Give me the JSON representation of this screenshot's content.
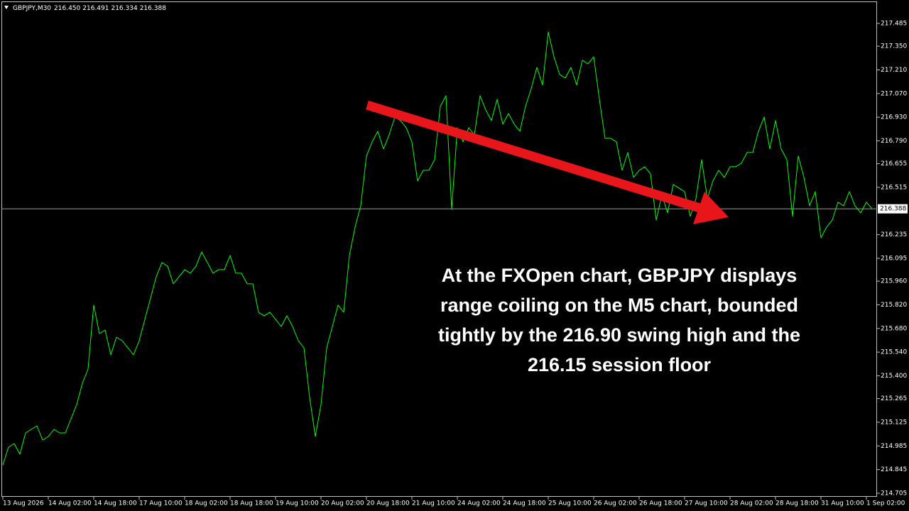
{
  "chart_data": {
    "type": "line",
    "title": "GBPJPY,M30",
    "ohlc_labels": [
      "216.450",
      "216.491",
      "216.334",
      "216.388"
    ],
    "annotation": [
      "At the FXOpen chart, GBPJPY displays",
      "range coiling on the M5 chart, bounded",
      "tightly by the 216.90 swing high and the",
      "216.15 session floor"
    ],
    "color": "#00ff00",
    "last_price": {
      "value": 216.388,
      "label": "216.388"
    },
    "categories": [
      "13 Aug 2026",
      null,
      null,
      null,
      null,
      null,
      null,
      null,
      "14 Aug 02:00",
      null,
      null,
      null,
      null,
      null,
      null,
      null,
      "14 Aug 18:00",
      null,
      null,
      null,
      null,
      null,
      null,
      null,
      "17 Aug 10:00",
      null,
      null,
      null,
      null,
      null,
      null,
      null,
      "18 Aug 02:00",
      null,
      null,
      null,
      null,
      null,
      null,
      null,
      "18 Aug 18:00",
      null,
      null,
      null,
      null,
      null,
      null,
      null,
      "19 Aug 10:00",
      null,
      null,
      null,
      null,
      null,
      null,
      null,
      "20 Aug 02:00",
      null,
      null,
      null,
      null,
      null,
      null,
      null,
      "20 Aug 18:00",
      null,
      null,
      null,
      null,
      null,
      null,
      null,
      "21 Aug 10:00",
      null,
      null,
      null,
      null,
      null,
      null,
      null,
      "24 Aug 02:00",
      null,
      null,
      null,
      null,
      null,
      null,
      null,
      "24 Aug 18:00",
      null,
      null,
      null,
      null,
      null,
      null,
      null,
      "25 Aug 10:00",
      null,
      null,
      null,
      null,
      null,
      null,
      null,
      "26 Aug 02:00",
      null,
      null,
      null,
      null,
      null,
      null,
      null,
      "26 Aug 18:00",
      null,
      null,
      null,
      null,
      null,
      null,
      null,
      "27 Aug 10:00",
      null,
      null,
      null,
      null,
      null,
      null,
      null,
      "28 Aug 02:00",
      null,
      null,
      null,
      null,
      null,
      null,
      null,
      "28 Aug 18:00",
      null,
      null,
      null,
      null,
      null,
      null,
      null,
      "31 Aug 10:00",
      null,
      null,
      null,
      null,
      null,
      null,
      null,
      "1 Sep 02:00",
      null
    ],
    "values": [
      214.873,
      214.978,
      214.999,
      214.936,
      215.062,
      215.083,
      215.104,
      215.02,
      215.041,
      215.083,
      215.062,
      215.062,
      215.146,
      215.23,
      215.356,
      215.44,
      215.818,
      215.65,
      215.671,
      215.524,
      215.629,
      215.608,
      215.566,
      215.524,
      215.608,
      215.734,
      215.86,
      215.986,
      216.07,
      216.049,
      215.944,
      215.986,
      216.028,
      216.007,
      216.049,
      216.133,
      216.07,
      216.007,
      216.028,
      216.028,
      216.112,
      216.007,
      216.007,
      215.944,
      215.944,
      215.776,
      215.755,
      215.776,
      215.734,
      215.692,
      215.755,
      215.692,
      215.608,
      215.566,
      215.272,
      215.041,
      215.23,
      215.566,
      215.692,
      215.818,
      215.776,
      216.112,
      216.28,
      216.406,
      216.7,
      216.784,
      216.847,
      216.742,
      216.826,
      216.931,
      216.91,
      216.868,
      216.784,
      216.553,
      216.616,
      216.616,
      216.679,
      216.994,
      217.057,
      216.385,
      216.868,
      216.784,
      216.868,
      216.826,
      217.057,
      216.973,
      216.91,
      217.036,
      216.889,
      216.952,
      216.889,
      216.847,
      216.994,
      217.099,
      217.225,
      217.12,
      217.435,
      217.288,
      217.183,
      217.162,
      217.225,
      217.12,
      217.267,
      217.246,
      217.288,
      217.036,
      216.805,
      216.805,
      216.784,
      216.616,
      216.721,
      216.574,
      216.616,
      216.637,
      216.595,
      216.322,
      216.469,
      216.364,
      216.532,
      216.511,
      216.49,
      216.343,
      216.448,
      216.679,
      216.448,
      216.553,
      216.616,
      216.574,
      216.637,
      216.637,
      216.658,
      216.721,
      216.721,
      216.847,
      216.931,
      216.742,
      216.91,
      216.742,
      216.679,
      216.343,
      216.7,
      216.574,
      216.406,
      216.49,
      216.217,
      216.28,
      216.322,
      216.427,
      216.406,
      216.49,
      216.406,
      216.364,
      216.427,
      216.388
    ],
    "ylim": [
      214.684,
      217.615
    ],
    "yticks": [
      217.485,
      {
        "value": 217.35,
        "label": "217.350"
      },
      {
        "value": 217.21,
        "label": "217.210"
      },
      {
        "value": 217.07,
        "label": "217.070"
      },
      {
        "value": 216.93,
        "label": "216.930"
      },
      {
        "value": 216.79,
        "label": "216.790"
      },
      216.655,
      216.515,
      216.235,
      216.095,
      {
        "value": 215.96,
        "label": "215.960"
      },
      {
        "value": 215.82,
        "label": "215.820"
      },
      {
        "value": 215.68,
        "label": "215.680"
      },
      {
        "value": 215.54,
        "label": "215.540"
      },
      {
        "value": 215.4,
        "label": "215.400"
      },
      215.265,
      215.125,
      214.985,
      214.845,
      214.705
    ],
    "grid": false
  }
}
